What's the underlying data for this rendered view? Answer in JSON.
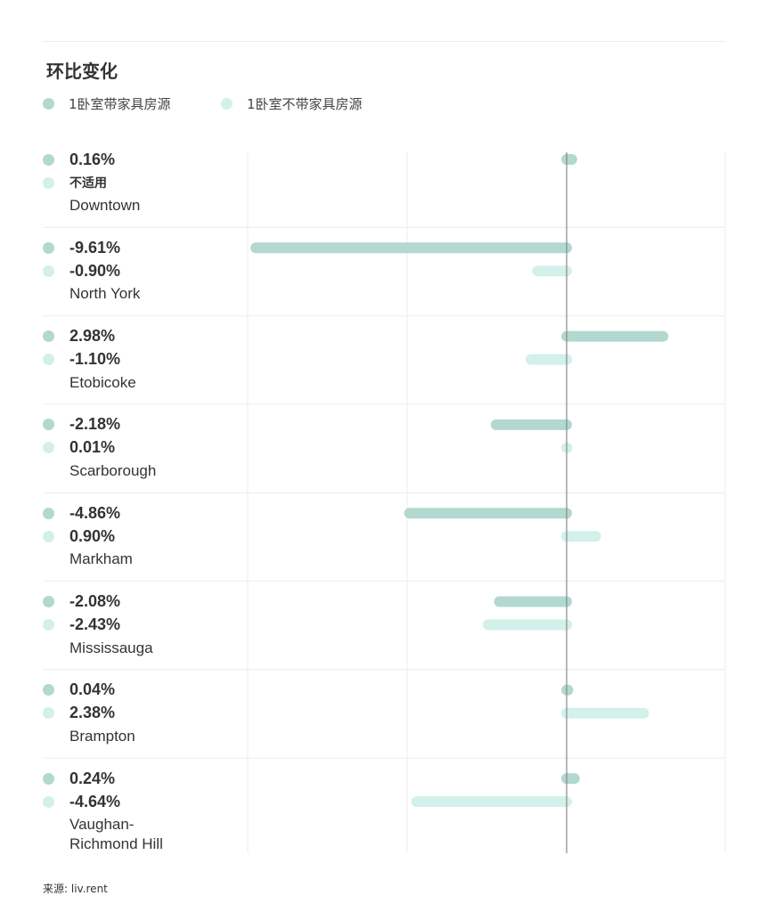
{
  "title": "环比变化",
  "source": "来源: liv.rent",
  "colors": {
    "furnished": "#b2d8d0",
    "unfurnished": "#d3f0eb",
    "grid": "#ececec",
    "axis": "#888888"
  },
  "legend": [
    {
      "label": "1卧室带家具房源",
      "color_key": "furnished"
    },
    {
      "label": "1卧室不带家具房源",
      "color_key": "unfurnished"
    }
  ],
  "chart_data": {
    "type": "bar",
    "orientation": "horizontal",
    "title": "环比变化",
    "unit": "%",
    "categories": [
      "Downtown",
      "North York",
      "Etobicoke",
      "Scarborough",
      "Markham",
      "Mississauga",
      "Brampton",
      "Vaughan-\nRichmond Hill"
    ],
    "series": [
      {
        "name": "1卧室带家具房源",
        "values": [
          0.16,
          -9.61,
          2.98,
          -2.18,
          -4.86,
          -2.08,
          0.04,
          0.24
        ],
        "labels": [
          "0.16%",
          "-9.61%",
          "2.98%",
          "-2.18%",
          "-4.86%",
          "-2.08%",
          "0.04%",
          "0.24%"
        ]
      },
      {
        "name": "1卧室不带家具房源",
        "values": [
          null,
          -0.9,
          -1.1,
          0.01,
          0.9,
          -2.43,
          2.38,
          -4.64
        ],
        "labels": [
          "不适用",
          "-0.90%",
          "-1.10%",
          "0.01%",
          "0.90%",
          "-2.43%",
          "2.38%",
          "-4.64%"
        ]
      }
    ],
    "xlim": [
      -10,
      5
    ],
    "legend_position": "top-left",
    "grid": true
  }
}
